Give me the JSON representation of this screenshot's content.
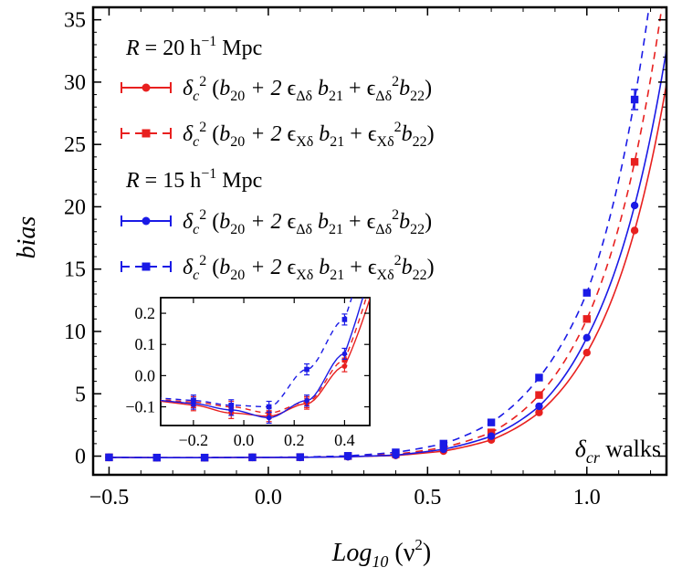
{
  "chart_data": [
    {
      "type": "line",
      "xlabel": "Log10 (ν²)",
      "ylabel": "bias",
      "xlim": [
        -0.55,
        1.25
      ],
      "ylim": [
        -1.5,
        36
      ],
      "xticks": [
        -0.5,
        0.0,
        0.5,
        1.0
      ],
      "xtick_labels": [
        "−0.5",
        "0.0",
        "0.5",
        "1.0"
      ],
      "yticks": [
        0,
        5,
        10,
        15,
        20,
        25,
        30,
        35
      ],
      "ytick_labels": [
        "0",
        "5",
        "10",
        "15",
        "20",
        "25",
        "30",
        "35"
      ],
      "annotation": "δcr walks",
      "legend": {
        "placement": "top-left",
        "group_titles": [
          "R = 20 h⁻¹ Mpc",
          "R = 15 h⁻¹ Mpc"
        ],
        "entries": [
          "δc² (b20 + 2 ϵΔδ b21 + ϵΔδ²b22)",
          "δc² (b20 + 2 ϵXδ b21 + ϵXδ²b22)",
          "δc² (b20 + 2 ϵΔδ b21 + ϵΔδ²b22)",
          "δc² (b20 + 2 ϵXδ b21 + ϵXδ²b22)"
        ]
      },
      "series": [
        {
          "color": "#e8201f",
          "line": "solid",
          "marker": "circle",
          "x": [
            -0.5,
            -0.35,
            -0.2,
            -0.05,
            0.1,
            0.25,
            0.4,
            0.55,
            0.7,
            0.85,
            1.0,
            1.15
          ],
          "y": [
            -0.1,
            -0.12,
            -0.12,
            -0.1,
            -0.1,
            -0.05,
            0.05,
            0.4,
            1.3,
            3.5,
            8.3,
            18.1
          ]
        },
        {
          "color": "#e8201f",
          "line": "dashed",
          "marker": "square",
          "x": [
            -0.5,
            -0.35,
            -0.2,
            -0.05,
            0.1,
            0.25,
            0.4,
            0.55,
            0.7,
            0.85,
            1.0,
            1.15
          ],
          "y": [
            -0.1,
            -0.12,
            -0.12,
            -0.1,
            -0.08,
            0.0,
            0.15,
            0.7,
            1.9,
            4.9,
            11.0,
            23.6
          ]
        },
        {
          "color": "#1a1ae6",
          "line": "solid",
          "marker": "circle",
          "x": [
            -0.5,
            -0.35,
            -0.2,
            -0.05,
            0.1,
            0.25,
            0.4,
            0.55,
            0.7,
            0.85,
            1.0,
            1.15
          ],
          "y": [
            -0.1,
            -0.12,
            -0.12,
            -0.1,
            -0.1,
            -0.05,
            0.08,
            0.55,
            1.6,
            4.0,
            9.5,
            20.1
          ]
        },
        {
          "color": "#1a1ae6",
          "line": "dashed",
          "marker": "square",
          "x": [
            -0.5,
            -0.35,
            -0.2,
            -0.05,
            0.1,
            0.25,
            0.4,
            0.55,
            0.7,
            0.85,
            1.0,
            1.15
          ],
          "y": [
            -0.1,
            -0.12,
            -0.12,
            -0.1,
            -0.08,
            0.02,
            0.3,
            1.0,
            2.7,
            6.3,
            13.1,
            28.6
          ]
        }
      ]
    },
    {
      "type": "line",
      "xlim": [
        -0.33,
        0.5
      ],
      "ylim": [
        -0.16,
        0.25
      ],
      "xticks": [
        -0.2,
        0.0,
        0.2,
        0.4
      ],
      "xtick_labels": [
        "−0.2",
        "0.0",
        "0.2",
        "0.4"
      ],
      "yticks": [
        -0.1,
        0.0,
        0.1,
        0.2
      ],
      "ytick_labels": [
        "−0.1",
        "0.0",
        "0.1",
        "0.2"
      ],
      "series": [
        {
          "color": "#e8201f",
          "line": "solid",
          "marker": "circle",
          "x": [
            -0.2,
            -0.05,
            0.1,
            0.25,
            0.4
          ],
          "y": [
            -0.095,
            -0.12,
            -0.13,
            -0.09,
            0.03
          ]
        },
        {
          "color": "#e8201f",
          "line": "dashed",
          "marker": "square",
          "x": [
            -0.2,
            -0.05,
            0.1,
            0.25,
            0.4
          ],
          "y": [
            -0.085,
            -0.1,
            -0.12,
            -0.085,
            0.05
          ]
        },
        {
          "color": "#1a1ae6",
          "line": "solid",
          "marker": "circle",
          "x": [
            -0.2,
            -0.05,
            0.1,
            0.25,
            0.4
          ],
          "y": [
            -0.09,
            -0.11,
            -0.135,
            -0.08,
            0.07
          ]
        },
        {
          "color": "#1a1ae6",
          "line": "dashed",
          "marker": "square",
          "x": [
            -0.2,
            -0.05,
            0.1,
            0.25,
            0.4
          ],
          "y": [
            -0.08,
            -0.095,
            -0.1,
            0.02,
            0.18
          ]
        }
      ]
    }
  ]
}
